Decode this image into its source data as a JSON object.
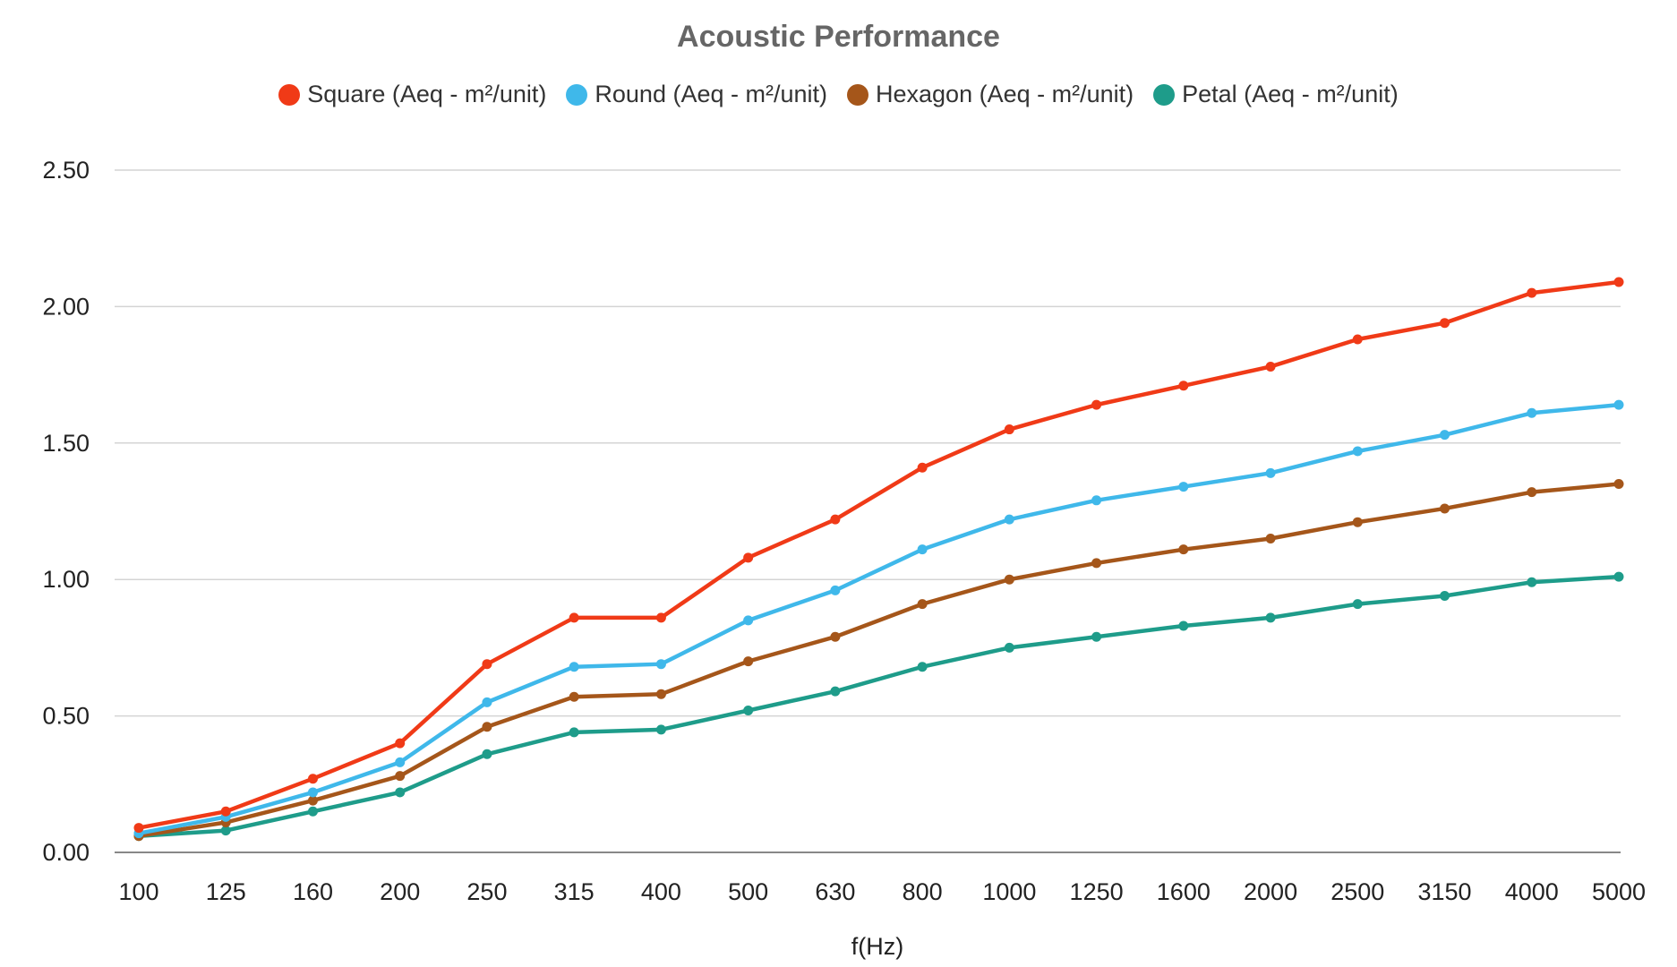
{
  "chart_data": {
    "type": "line",
    "title": "Acoustic Performance",
    "xlabel": "f(Hz)",
    "ylabel": "",
    "ylim": [
      0,
      2.5
    ],
    "yticks": [
      "0.00",
      "0.50",
      "1.00",
      "1.50",
      "2.00",
      "2.50"
    ],
    "grid": true,
    "legend_position": "top",
    "categories": [
      "100",
      "125",
      "160",
      "200",
      "250",
      "315",
      "400",
      "500",
      "630",
      "800",
      "1000",
      "1250",
      "1600",
      "2000",
      "2500",
      "3150",
      "4000",
      "5000"
    ],
    "series": [
      {
        "name": "Square (Aeq - m²/unit)",
        "color": "#f03a17",
        "values": [
          0.09,
          0.15,
          0.27,
          0.4,
          0.69,
          0.86,
          0.86,
          1.08,
          1.22,
          1.41,
          1.55,
          1.64,
          1.71,
          1.78,
          1.88,
          1.94,
          2.05,
          2.09
        ]
      },
      {
        "name": "Round (Aeq - m²/unit)",
        "color": "#3fb8ea",
        "values": [
          0.07,
          0.13,
          0.22,
          0.33,
          0.55,
          0.68,
          0.69,
          0.85,
          0.96,
          1.11,
          1.22,
          1.29,
          1.34,
          1.39,
          1.47,
          1.53,
          1.61,
          1.64
        ]
      },
      {
        "name": "Hexagon (Aeq - m²/unit)",
        "color": "#a5561a",
        "values": [
          0.06,
          0.11,
          0.19,
          0.28,
          0.46,
          0.57,
          0.58,
          0.7,
          0.79,
          0.91,
          1.0,
          1.06,
          1.11,
          1.15,
          1.21,
          1.26,
          1.32,
          1.35
        ]
      },
      {
        "name": "Petal (Aeq - m²/unit)",
        "color": "#1e9c8a",
        "values": [
          0.06,
          0.08,
          0.15,
          0.22,
          0.36,
          0.44,
          0.45,
          0.52,
          0.59,
          0.68,
          0.75,
          0.79,
          0.83,
          0.86,
          0.91,
          0.94,
          0.99,
          1.01
        ]
      }
    ]
  }
}
